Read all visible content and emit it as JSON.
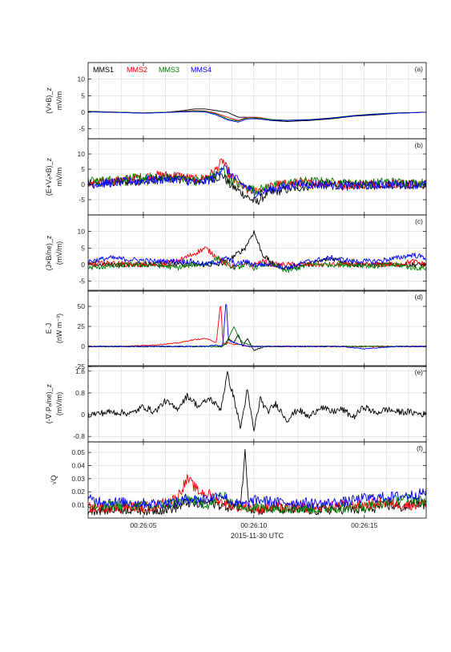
{
  "figure": {
    "x_axis": {
      "date_label": "2015-11-30 UTC",
      "ticks": [
        "00:26:05",
        "00:26:10",
        "00:26:15"
      ],
      "tick_values_s": [
        5,
        10,
        15
      ],
      "range_s": [
        2.5,
        17.8
      ]
    }
  },
  "colors": {
    "MMS1": "#000000",
    "MMS2": "#ff0000",
    "MMS3": "#008000",
    "MMS4": "#0000ff"
  },
  "legend": [
    "MMS1",
    "MMS2",
    "MMS3",
    "MMS4"
  ],
  "chart_data": [
    {
      "panel": "(a)",
      "type": "line",
      "ylabel_lines": [
        "(V×B)_z",
        "mV/m"
      ],
      "ylim": [
        -8,
        15
      ],
      "yticks": [
        "10",
        "5",
        "0",
        "-5"
      ],
      "ytick_values": [
        10,
        5,
        0,
        -5
      ],
      "x": [
        2.5,
        4,
        5,
        6,
        6.8,
        7.3,
        7.8,
        8.3,
        8.8,
        9.3,
        9.7,
        10.2,
        10.8,
        11.5,
        12.5,
        13.5,
        14.5,
        15.5,
        16.5,
        17.8
      ],
      "series": [
        {
          "name": "MMS1",
          "values": [
            0.3,
            0,
            -0.3,
            0,
            0.5,
            1,
            1,
            0.5,
            0,
            -1.5,
            -1.5,
            -2,
            -2.5,
            -2.8,
            -2.5,
            -2,
            -1.2,
            -0.8,
            -0.3,
            0
          ]
        },
        {
          "name": "MMS2",
          "values": [
            0.2,
            0,
            -0.2,
            0,
            0.3,
            0.5,
            0.4,
            -0.3,
            -1.5,
            -2.5,
            -1.5,
            -1.5,
            -2.2,
            -2.5,
            -2.3,
            -1.8,
            -1,
            -0.5,
            -0.2,
            0
          ]
        },
        {
          "name": "MMS3",
          "values": [
            0.2,
            0,
            -0.2,
            0,
            0.2,
            0.4,
            0.3,
            -0.5,
            -2,
            -2.7,
            -1.7,
            -1.7,
            -2.2,
            -2.4,
            -2.2,
            -1.7,
            -1,
            -0.5,
            -0.2,
            0
          ]
        },
        {
          "name": "MMS4",
          "values": [
            0.1,
            -0.1,
            -0.3,
            -0.1,
            0.1,
            0.2,
            0.1,
            -0.8,
            -2.3,
            -3,
            -2,
            -2,
            -2.4,
            -2.5,
            -2.3,
            -1.8,
            -1.1,
            -0.6,
            -0.3,
            0
          ]
        }
      ]
    },
    {
      "panel": "(b)",
      "type": "line",
      "ylabel_lines": [
        "(E+Vₑ×B)_z",
        "mV/m"
      ],
      "ylim": [
        -10,
        15
      ],
      "yticks": [
        "10",
        "5",
        "0",
        "-5"
      ],
      "ytick_values": [
        10,
        5,
        0,
        -5
      ],
      "x": [
        2.5,
        3.5,
        4.5,
        5.5,
        6.5,
        7.5,
        8.2,
        8.6,
        8.9,
        9.3,
        9.7,
        10.1,
        10.6,
        11.2,
        12,
        13,
        14,
        15,
        16,
        17,
        17.8
      ],
      "series": [
        {
          "name": "MMS1",
          "values": [
            0,
            0.5,
            1,
            1.5,
            2,
            1,
            2,
            3,
            0,
            -2,
            -4,
            -6,
            -3,
            -2,
            -1,
            0,
            0,
            0,
            0,
            0,
            0
          ]
        },
        {
          "name": "MMS2",
          "values": [
            0.5,
            1,
            2,
            3,
            3,
            1.5,
            4,
            8,
            3,
            0,
            -2,
            -2,
            -1,
            0,
            0.5,
            0.5,
            0,
            0,
            0.5,
            0,
            0
          ]
        },
        {
          "name": "MMS3",
          "values": [
            1,
            1.5,
            2,
            2,
            2.5,
            1,
            3,
            5,
            2,
            0,
            -1,
            -2,
            -1,
            0,
            1,
            1,
            0.5,
            0,
            1,
            0.5,
            0.5
          ]
        },
        {
          "name": "MMS4",
          "values": [
            0,
            0.5,
            1,
            1.5,
            2,
            0.5,
            2,
            6,
            4,
            1,
            -1,
            -3,
            -2,
            -1,
            0,
            0,
            -0.5,
            -0.5,
            0,
            0,
            0
          ]
        }
      ],
      "noise": 1.5
    },
    {
      "panel": "(c)",
      "type": "line",
      "ylabel_lines": [
        "(J×B/ne)_z",
        "(mV/m)"
      ],
      "ylim": [
        -8,
        15
      ],
      "yticks": [
        "10",
        "5",
        "0",
        "-5"
      ],
      "ytick_values": [
        10,
        5,
        0,
        -5
      ],
      "x": [
        2.5,
        3.5,
        4.5,
        5.5,
        6.5,
        7.2,
        7.8,
        8.4,
        8.8,
        9.2,
        9.6,
        10,
        10.4,
        10.9,
        11.5,
        12.5,
        13.5,
        14.5,
        15.5,
        16.5,
        17.2,
        17.8
      ],
      "series": [
        {
          "name": "MMS1",
          "values": [
            0,
            0,
            0,
            0,
            0,
            0,
            0,
            0,
            1,
            3,
            5,
            10,
            3,
            0,
            -1,
            0,
            2,
            0,
            0,
            0,
            0,
            0
          ]
        },
        {
          "name": "MMS2",
          "values": [
            0,
            0.5,
            0,
            0,
            1,
            3,
            5,
            2,
            0,
            -1,
            0,
            0,
            1,
            0,
            0,
            0,
            0,
            0,
            0,
            0,
            1,
            0
          ]
        },
        {
          "name": "MMS3",
          "values": [
            -1,
            -0.5,
            0,
            0,
            -1,
            0,
            0,
            2,
            0,
            -1,
            0,
            -1,
            0,
            0,
            -2,
            0,
            0,
            0,
            -0.5,
            0,
            -1,
            -1
          ]
        },
        {
          "name": "MMS4",
          "values": [
            1,
            2,
            1.5,
            1,
            1,
            1,
            0,
            1,
            2,
            0,
            1,
            0,
            0,
            0,
            -1,
            1,
            2,
            1,
            1,
            2,
            3,
            2
          ]
        }
      ],
      "noise": 0.8
    },
    {
      "panel": "(d)",
      "type": "line",
      "ylabel_lines": [
        "E·J",
        "(nW m⁻³)"
      ],
      "ylim": [
        -25,
        70
      ],
      "yticks": [
        "50",
        "25",
        "0",
        "-25"
      ],
      "ytick_values": [
        50,
        25,
        0,
        -25
      ],
      "x": [
        2.5,
        4,
        5.5,
        6.5,
        7.2,
        7.8,
        8.3,
        8.5,
        8.6,
        8.75,
        8.85,
        9.1,
        9.3,
        9.5,
        9.7,
        10,
        10.5,
        11,
        12,
        13,
        14,
        15,
        16.5,
        17.8
      ],
      "series": [
        {
          "name": "MMS1",
          "values": [
            0,
            0,
            0,
            0,
            0,
            0,
            0,
            0,
            0,
            5,
            10,
            5,
            15,
            0,
            10,
            -5,
            0,
            0,
            0,
            0,
            0,
            0,
            0,
            0
          ]
        },
        {
          "name": "MMS2",
          "values": [
            0,
            0,
            2,
            4,
            8,
            10,
            5,
            55,
            5,
            3,
            5,
            2,
            3,
            2,
            0,
            0,
            0,
            0,
            0,
            0,
            0,
            0,
            0,
            0
          ]
        },
        {
          "name": "MMS3",
          "values": [
            0,
            0,
            0,
            0,
            0,
            0,
            0,
            0,
            3,
            2,
            10,
            25,
            12,
            5,
            3,
            0,
            0,
            0,
            0,
            0,
            0,
            0,
            0,
            0
          ]
        },
        {
          "name": "MMS4",
          "values": [
            0,
            0,
            0,
            0,
            0,
            0,
            2,
            0,
            3,
            60,
            8,
            5,
            3,
            2,
            0,
            0,
            0,
            0,
            0,
            0,
            0,
            -3,
            0,
            0
          ]
        }
      ],
      "noise": 0.6
    },
    {
      "panel": "(e)",
      "type": "line",
      "ylabel_lines": [
        "(-∇·Pₑ/ne)_z",
        "(mV/m)"
      ],
      "ylim": [
        -1.0,
        1.8
      ],
      "yticks": [
        "1.6",
        "0.8",
        "0",
        "-0.8"
      ],
      "ytick_values": [
        1.6,
        0.8,
        0,
        -0.8
      ],
      "x": [
        2.5,
        3.5,
        4.5,
        5,
        5.5,
        6,
        6.5,
        7,
        7.5,
        8,
        8.5,
        8.8,
        9.1,
        9.4,
        9.7,
        10,
        10.3,
        10.6,
        11,
        11.5,
        12,
        12.5,
        13,
        13.5,
        14,
        14.5,
        15,
        15.5,
        16,
        16.5,
        17,
        17.8
      ],
      "series": [
        {
          "name": "MMS",
          "values": [
            0,
            0.1,
            0.05,
            0.3,
            0.1,
            0.5,
            0.2,
            0.7,
            0.3,
            0.6,
            0.2,
            1.5,
            0.6,
            -0.5,
            0.9,
            -0.6,
            0.6,
            0.1,
            0.4,
            -0.2,
            0.2,
            -0.1,
            0.3,
            0.1,
            0.2,
            -0.1,
            0.3,
            0.05,
            0.2,
            0.1,
            0.1,
            0
          ]
        }
      ],
      "noise": 0.12
    },
    {
      "panel": "(f)",
      "type": "line",
      "ylabel_lines": [
        "√Q"
      ],
      "ylim": [
        0.0,
        0.058
      ],
      "yticks": [
        "0.05",
        "0.04",
        "0.03",
        "0.02",
        "0.01"
      ],
      "ytick_values": [
        0.05,
        0.04,
        0.03,
        0.02,
        0.01
      ],
      "x": [
        2.5,
        4,
        5.5,
        6.5,
        7,
        7.5,
        8,
        8.5,
        9,
        9.4,
        9.6,
        9.8,
        10.2,
        11,
        12,
        13,
        14,
        15,
        16,
        16.8,
        17.4,
        17.8
      ],
      "series": [
        {
          "name": "MMS1",
          "values": [
            0.006,
            0.007,
            0.006,
            0.008,
            0.012,
            0.01,
            0.012,
            0.01,
            0.008,
            0.01,
            0.05,
            0.008,
            0.006,
            0.007,
            0.006,
            0.006,
            0.007,
            0.006,
            0.01,
            0.008,
            0.012,
            0.01
          ]
        },
        {
          "name": "MMS2",
          "values": [
            0.008,
            0.008,
            0.009,
            0.015,
            0.03,
            0.02,
            0.018,
            0.012,
            0.01,
            0.008,
            0.009,
            0.008,
            0.007,
            0.008,
            0.008,
            0.008,
            0.01,
            0.01,
            0.012,
            0.01,
            0.01,
            0.012
          ]
        },
        {
          "name": "MMS3",
          "values": [
            0.008,
            0.01,
            0.009,
            0.012,
            0.015,
            0.012,
            0.01,
            0.018,
            0.012,
            0.008,
            0.01,
            0.007,
            0.008,
            0.008,
            0.007,
            0.007,
            0.008,
            0.008,
            0.012,
            0.015,
            0.014,
            0.012
          ]
        },
        {
          "name": "MMS4",
          "values": [
            0.014,
            0.012,
            0.011,
            0.012,
            0.015,
            0.014,
            0.015,
            0.018,
            0.012,
            0.01,
            0.01,
            0.012,
            0.014,
            0.012,
            0.012,
            0.011,
            0.012,
            0.015,
            0.016,
            0.017,
            0.018,
            0.02
          ]
        }
      ],
      "noise": 0.004
    }
  ]
}
